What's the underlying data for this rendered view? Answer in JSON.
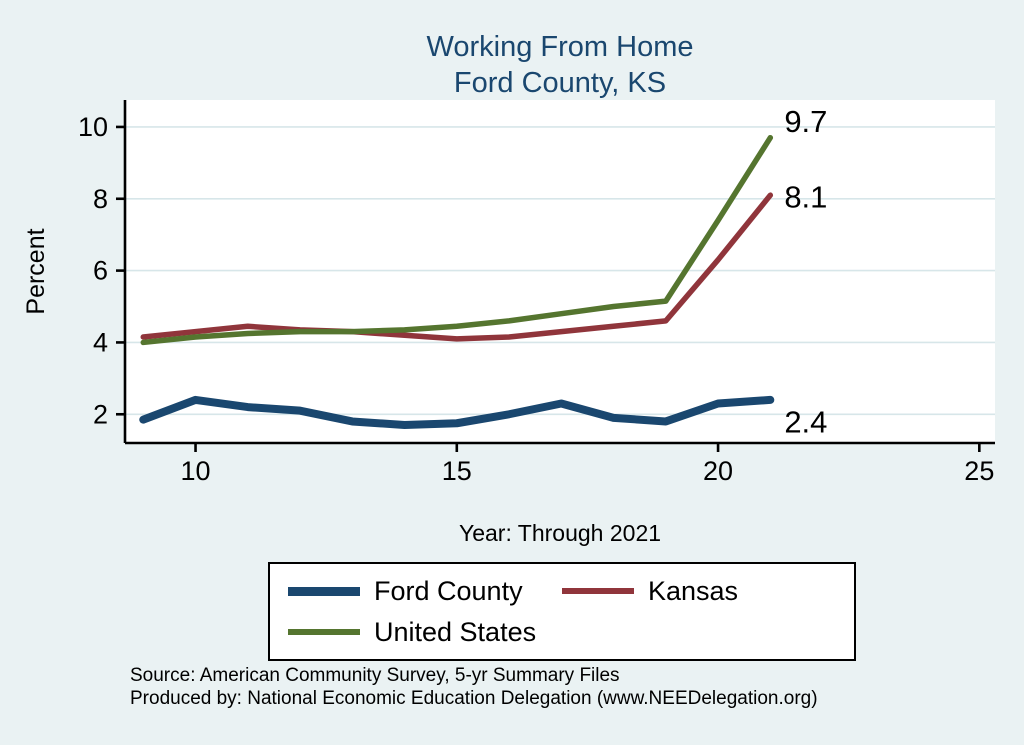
{
  "title": {
    "line1": "Working From Home",
    "line2": "Ford County, KS"
  },
  "chart_data": {
    "type": "line",
    "title": "Working From Home — Ford County, KS",
    "xlabel": "Year: Through 2021",
    "ylabel": "Percent",
    "x": [
      9,
      10,
      11,
      12,
      13,
      14,
      15,
      16,
      17,
      18,
      19,
      20,
      21
    ],
    "series": [
      {
        "name": "Ford County",
        "color": "#1a476f",
        "values": [
          1.85,
          2.4,
          2.2,
          2.1,
          1.8,
          1.7,
          1.75,
          2.0,
          2.3,
          1.9,
          1.8,
          2.3,
          2.4
        ],
        "end_label": "2.4"
      },
      {
        "name": "Kansas",
        "color": "#90353b",
        "values": [
          4.15,
          4.3,
          4.45,
          4.35,
          4.3,
          4.2,
          4.1,
          4.15,
          4.3,
          4.45,
          4.6,
          6.3,
          8.1
        ],
        "end_label": "8.1"
      },
      {
        "name": "United States",
        "color": "#55752f",
        "values": [
          4.0,
          4.15,
          4.25,
          4.3,
          4.3,
          4.35,
          4.45,
          4.6,
          4.8,
          5.0,
          5.15,
          7.4,
          9.7
        ],
        "end_label": "9.7"
      }
    ],
    "xticks": [
      10,
      15,
      20,
      25
    ],
    "yticks": [
      2,
      4,
      6,
      8,
      10
    ],
    "xlim": [
      8.65,
      25.3
    ],
    "ylim": [
      1.2,
      10.75
    ],
    "grid": true,
    "legend_position": "bottom"
  },
  "footer": {
    "line1": "Source: American Community Survey, 5-yr Summary Files",
    "line2": "Produced by: National Economic Education Delegation (www.NEEDelegation.org)"
  },
  "colors": {
    "background": "#eaf2f3",
    "plot_background": "#ffffff",
    "grid": "#d7e6e9",
    "axis": "#000000",
    "title": "#1a476f"
  }
}
